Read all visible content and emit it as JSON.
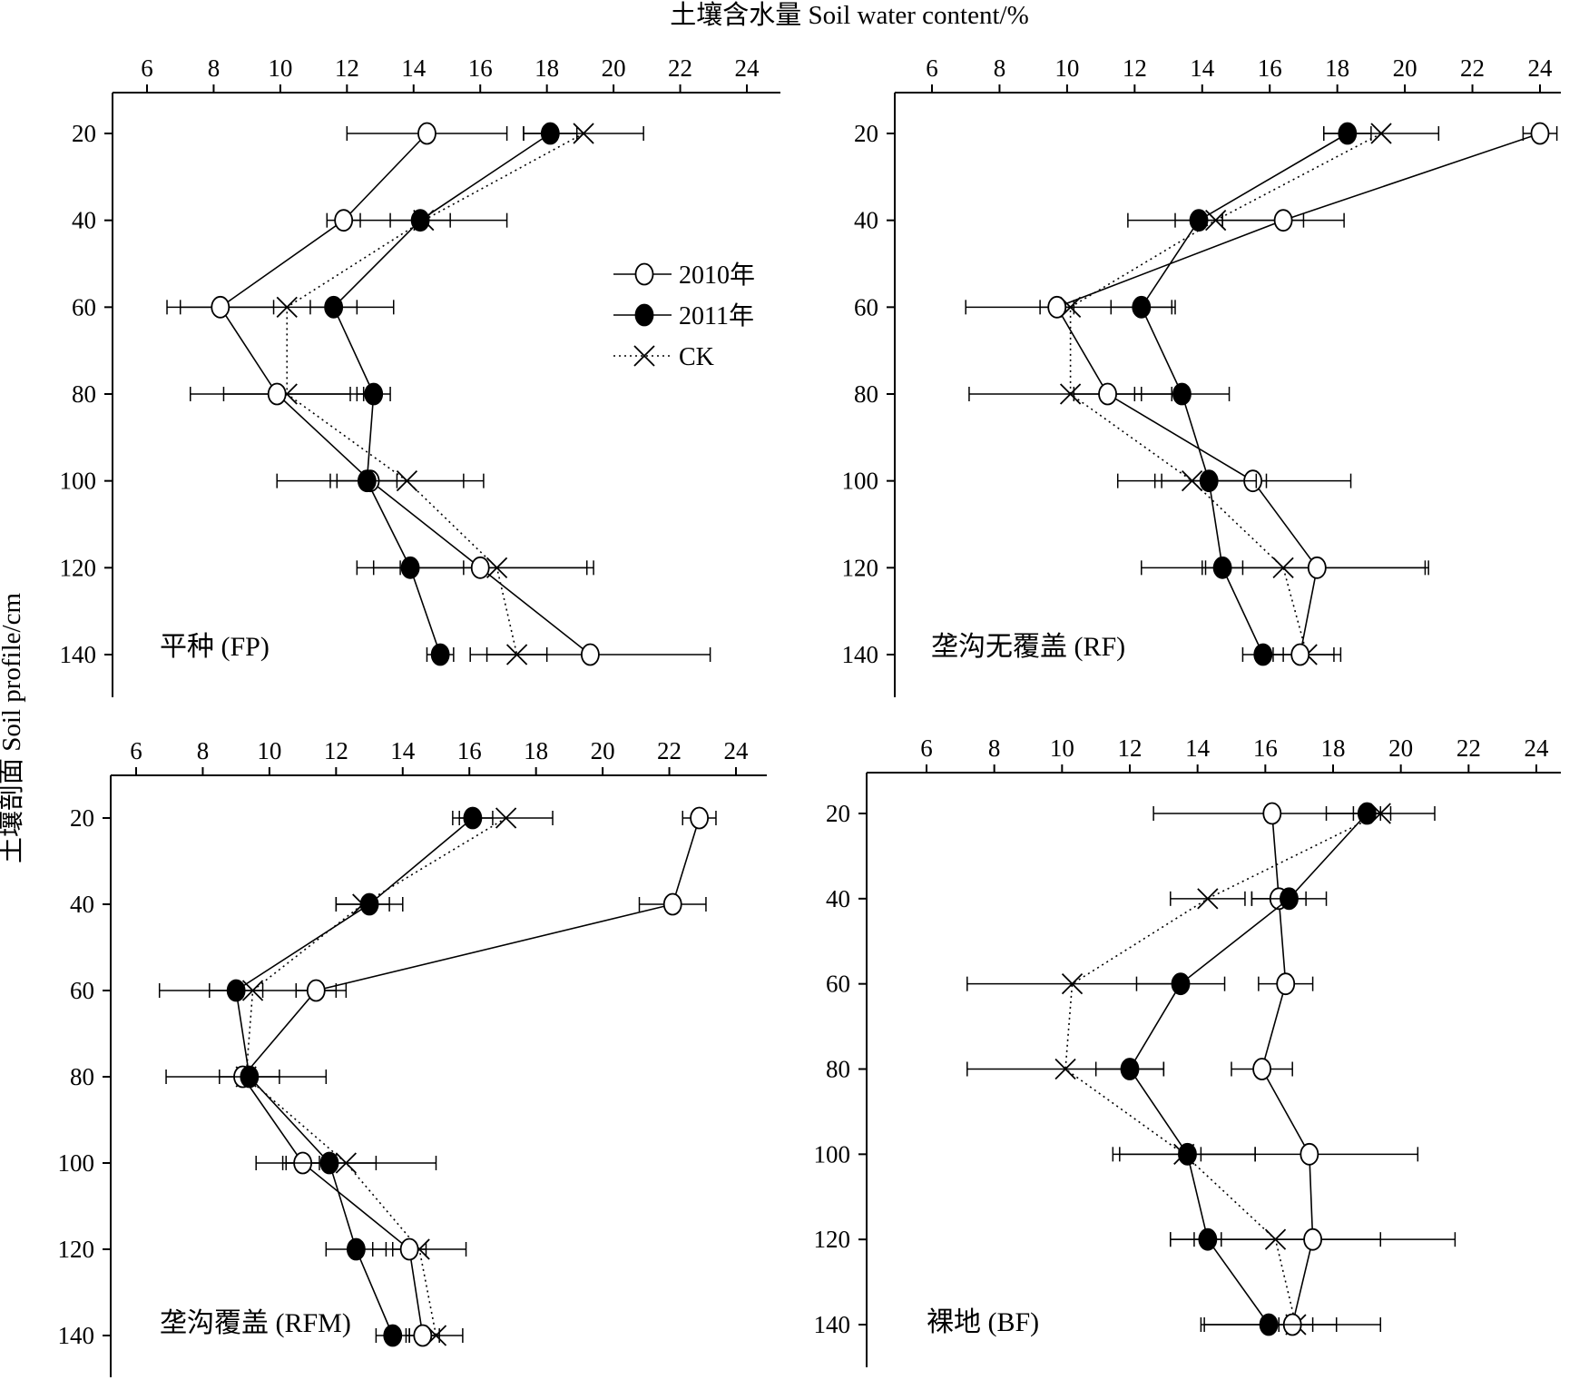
{
  "figure": {
    "x_axis_title": "土壤含水量 Soil water content/%",
    "y_axis_title": "土壤剖面 Soil profile/cm"
  },
  "legend": [
    {
      "label": "2010年",
      "marker": "open-circle",
      "line": "solid"
    },
    {
      "label": "2011年",
      "marker": "filled-circle",
      "line": "solid"
    },
    {
      "label": "CK",
      "marker": "cross",
      "line": "dotted"
    }
  ],
  "colors": {
    "ink": "#000000",
    "background": "#ffffff"
  },
  "chart_data": [
    {
      "type": "line",
      "panel_label": "平种 (FP)",
      "xlim": [
        5,
        25
      ],
      "x_ticks": [
        6,
        8,
        10,
        12,
        14,
        16,
        18,
        20,
        22,
        24
      ],
      "y_ticks": [
        20,
        40,
        60,
        80,
        100,
        120,
        140
      ],
      "ylim": [
        10,
        150
      ],
      "y_reversed": true,
      "series": [
        {
          "name": "2010年",
          "depth": [
            20,
            40,
            60,
            80,
            100,
            120,
            140
          ],
          "values": [
            14.4,
            11.9,
            8.2,
            9.9,
            12.7,
            16.0,
            19.3
          ],
          "errors": [
            2.4,
            0.5,
            1.6,
            2.6,
            2.8,
            3.2,
            3.6
          ]
        },
        {
          "name": "2011年",
          "depth": [
            20,
            40,
            60,
            80,
            100,
            120,
            140
          ],
          "values": [
            18.1,
            14.2,
            11.6,
            12.8,
            12.6,
            13.9,
            14.8
          ],
          "errors": [
            0.8,
            0.9,
            0.7,
            0.5,
            0.9,
            1.6,
            0.4
          ]
        },
        {
          "name": "CK",
          "depth": [
            20,
            40,
            60,
            80,
            100,
            120,
            140
          ],
          "values": [
            19.1,
            14.3,
            10.2,
            10.2,
            13.8,
            16.5,
            17.1
          ],
          "errors": [
            1.8,
            2.5,
            3.2,
            1.9,
            2.3,
            2.9,
            0.9
          ]
        }
      ]
    },
    {
      "type": "line",
      "panel_label": "垄沟无覆盖 (RF)",
      "xlim": [
        5,
        25
      ],
      "x_ticks": [
        6,
        8,
        10,
        12,
        14,
        16,
        18,
        20,
        22,
        24
      ],
      "y_ticks": [
        20,
        40,
        60,
        80,
        100,
        120,
        140
      ],
      "ylim": [
        10,
        150
      ],
      "y_reversed": true,
      "series": [
        {
          "name": "2010年",
          "depth": [
            20,
            40,
            60,
            80,
            100,
            120,
            140
          ],
          "values": [
            24.0,
            16.4,
            9.7,
            11.2,
            15.5,
            17.4,
            16.9
          ],
          "errors": [
            0.5,
            1.8,
            0.5,
            1.0,
            2.9,
            3.3,
            1.0
          ]
        },
        {
          "name": "2011年",
          "depth": [
            20,
            40,
            60,
            80,
            100,
            120,
            140
          ],
          "values": [
            18.3,
            13.9,
            12.2,
            13.4,
            14.2,
            14.6,
            15.8
          ],
          "errors": [
            0.7,
            0.7,
            0.9,
            1.4,
            1.4,
            0.6,
            0.6
          ]
        },
        {
          "name": "CK",
          "depth": [
            20,
            40,
            60,
            80,
            100,
            120,
            140
          ],
          "values": [
            19.3,
            14.4,
            10.1,
            10.1,
            13.7,
            16.4,
            17.1
          ],
          "errors": [
            1.7,
            2.6,
            3.1,
            3.0,
            2.2,
            4.2,
            1.0
          ]
        }
      ]
    },
    {
      "type": "line",
      "panel_label": "垄沟覆盖 (RFM)",
      "xlim": [
        5,
        25
      ],
      "x_ticks": [
        6,
        8,
        10,
        12,
        14,
        16,
        18,
        20,
        22,
        24
      ],
      "y_ticks": [
        20,
        40,
        60,
        80,
        100,
        120,
        140
      ],
      "ylim": [
        10,
        150
      ],
      "y_reversed": true,
      "series": [
        {
          "name": "2010年",
          "depth": [
            20,
            40,
            60,
            80,
            100,
            120,
            140
          ],
          "values": [
            22.9,
            22.1,
            11.4,
            9.2,
            11.0,
            14.2,
            14.6
          ],
          "errors": [
            0.5,
            1.0,
            0.6,
            0.2,
            0.5,
            0.5,
            0.5
          ]
        },
        {
          "name": "2011年",
          "depth": [
            20,
            40,
            60,
            80,
            100,
            120,
            140
          ],
          "values": [
            16.1,
            13.0,
            9.0,
            9.4,
            11.8,
            12.6,
            13.7
          ],
          "errors": [
            0.6,
            1.0,
            0.8,
            0.9,
            1.4,
            0.9,
            0.5
          ]
        },
        {
          "name": "CK",
          "depth": [
            20,
            40,
            60,
            80,
            100,
            120,
            140
          ],
          "values": [
            17.1,
            12.8,
            9.5,
            9.3,
            12.3,
            14.5,
            15.0
          ],
          "errors": [
            1.4,
            0.8,
            2.8,
            2.4,
            2.7,
            1.4,
            0.8
          ]
        }
      ]
    },
    {
      "type": "line",
      "panel_label": "裸地 (BF)",
      "xlim": [
        5,
        25
      ],
      "x_ticks": [
        6,
        8,
        10,
        12,
        14,
        16,
        18,
        20,
        22,
        24
      ],
      "y_ticks": [
        20,
        40,
        60,
        80,
        100,
        120,
        140
      ],
      "ylim": [
        10,
        150
      ],
      "y_reversed": true,
      "series": [
        {
          "name": "2010年",
          "depth": [
            20,
            40,
            60,
            80,
            100,
            120,
            140
          ],
          "values": [
            16.2,
            16.4,
            16.6,
            15.9,
            17.3,
            17.4,
            16.8
          ],
          "errors": [
            3.5,
            0.8,
            0.8,
            0.9,
            3.2,
            4.2,
            2.6
          ]
        },
        {
          "name": "2011年",
          "depth": [
            20,
            40,
            60,
            80,
            100,
            120,
            140
          ],
          "values": [
            19.0,
            16.7,
            13.5,
            12.0,
            13.7,
            14.3,
            16.1
          ],
          "errors": [
            0.4,
            1.1,
            1.3,
            1.0,
            2.0,
            0.4,
            2.0
          ]
        },
        {
          "name": "CK",
          "depth": [
            20,
            40,
            60,
            80,
            100,
            120,
            140
          ],
          "values": [
            19.4,
            14.3,
            10.3,
            10.1,
            13.6,
            16.3,
            16.9
          ],
          "errors": [
            1.6,
            1.1,
            3.1,
            2.9,
            2.1,
            3.1,
            0.5
          ]
        }
      ]
    }
  ]
}
